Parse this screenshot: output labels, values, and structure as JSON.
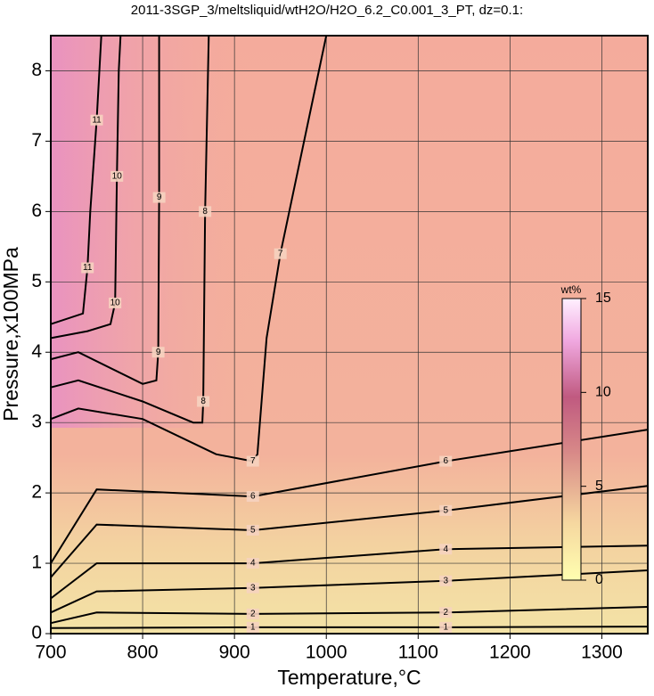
{
  "chart_data": {
    "type": "contour",
    "title": "2011-3SGP_3/meltsliquid/wtH2O/H2O_6.2_C0.001_3_PT, dz=0.1:",
    "xlabel": "Temperature,°C",
    "ylabel": "Pressure,x100MPa",
    "xlim": [
      700,
      1350
    ],
    "ylim": [
      0,
      8.5
    ],
    "xticks": [
      700,
      800,
      900,
      1000,
      1100,
      1200,
      1300
    ],
    "yticks": [
      0,
      1,
      2,
      3,
      4,
      5,
      6,
      7,
      8
    ],
    "grid": true,
    "colorbar": {
      "label": "wt%",
      "lim": [
        0,
        15
      ],
      "ticks": [
        0,
        5,
        10,
        15
      ]
    },
    "contours": [
      {
        "level": 1,
        "x": [
          700,
          920,
          1130,
          1350
        ],
        "y": [
          0.08,
          0.09,
          0.09,
          0.1
        ]
      },
      {
        "level": 2,
        "x": [
          700,
          750,
          920,
          1130,
          1350
        ],
        "y": [
          0.15,
          0.3,
          0.28,
          0.3,
          0.38
        ]
      },
      {
        "level": 3,
        "x": [
          700,
          750,
          920,
          1130,
          1350
        ],
        "y": [
          0.3,
          0.6,
          0.65,
          0.75,
          0.9
        ]
      },
      {
        "level": 4,
        "x": [
          700,
          750,
          920,
          1130,
          1350
        ],
        "y": [
          0.5,
          1.0,
          1.0,
          1.2,
          1.25
        ]
      },
      {
        "level": 5,
        "x": [
          700,
          750,
          920,
          1130,
          1350
        ],
        "y": [
          0.8,
          1.55,
          1.47,
          1.75,
          2.1
        ]
      },
      {
        "level": 6,
        "x": [
          700,
          750,
          920,
          1130,
          1350
        ],
        "y": [
          1.0,
          2.05,
          1.95,
          2.45,
          2.9
        ]
      },
      {
        "level": 7,
        "x": [
          700,
          730,
          800,
          880,
          920,
          925,
          935,
          950,
          1000
        ],
        "y": [
          3.05,
          3.2,
          3.05,
          2.55,
          2.45,
          2.55,
          4.2,
          5.4,
          8.5
        ]
      },
      {
        "level": 8,
        "x": [
          700,
          730,
          800,
          855,
          865,
          866,
          868,
          872
        ],
        "y": [
          3.5,
          3.6,
          3.3,
          3.0,
          3.0,
          3.3,
          6.0,
          8.5
        ]
      },
      {
        "level": 9,
        "x": [
          700,
          730,
          800,
          815,
          817,
          818,
          818
        ],
        "y": [
          3.9,
          4.0,
          3.55,
          3.6,
          4.0,
          6.2,
          8.5
        ]
      },
      {
        "level": 10,
        "x": [
          700,
          740,
          765,
          770,
          772,
          774,
          776
        ],
        "y": [
          4.2,
          4.3,
          4.4,
          4.7,
          6.5,
          8.0,
          8.5
        ]
      },
      {
        "level": 11,
        "x": [
          700,
          735,
          740,
          743,
          750,
          755
        ],
        "y": [
          4.4,
          4.55,
          5.2,
          6.0,
          7.3,
          8.5
        ]
      }
    ]
  }
}
